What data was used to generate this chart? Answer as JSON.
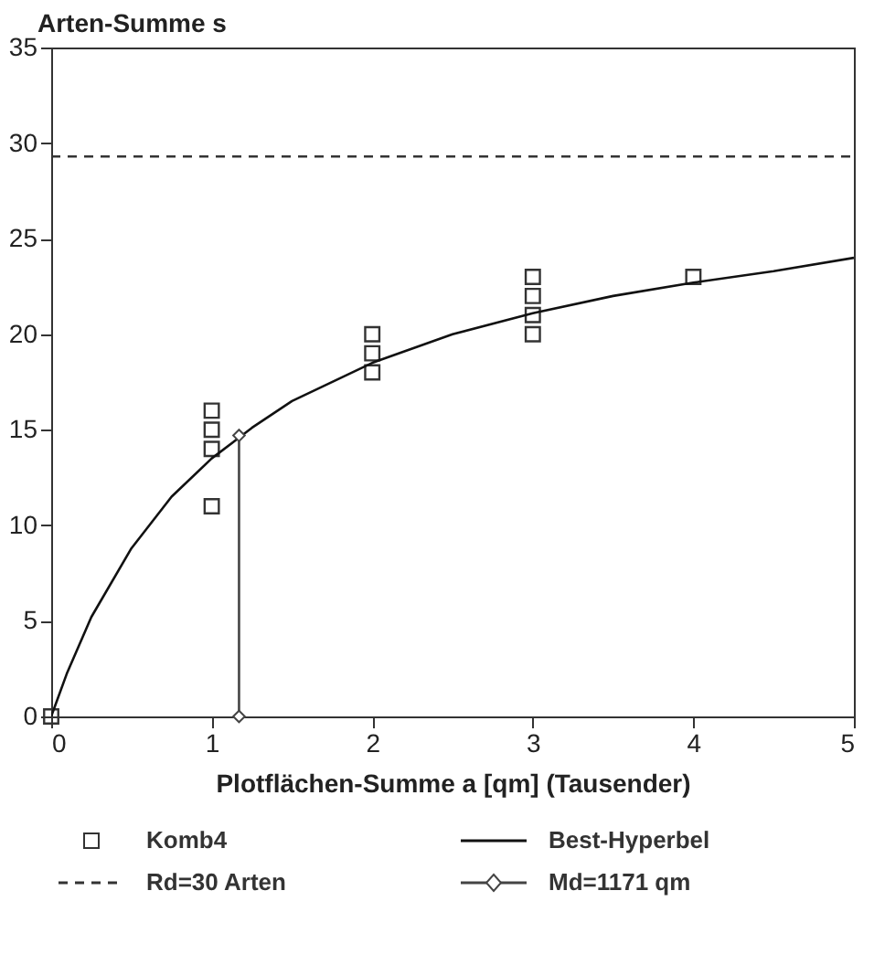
{
  "chart_data": {
    "type": "scatter",
    "xlabel": "Plotflächen-Summe a [qm] (Tausender)",
    "ylabel": "Arten-Summe s",
    "xlim": [
      0,
      5
    ],
    "xticks": [
      0,
      1,
      2,
      3,
      4,
      5
    ],
    "ylim": [
      0,
      35
    ],
    "yticks": [
      0,
      5,
      10,
      15,
      20,
      25,
      30,
      35
    ],
    "grid": false,
    "legend": "bottom",
    "series": [
      {
        "name": "Komb4",
        "marker": "square",
        "color": "#333333",
        "x": [
          0,
          1,
          1,
          1,
          1,
          2,
          2,
          2,
          3,
          3,
          3,
          3,
          4
        ],
        "values": [
          0,
          16,
          15,
          14,
          11,
          20,
          19,
          18,
          23,
          22,
          21,
          20,
          23
        ]
      },
      {
        "name": "Best-Hyperbel",
        "type": "line",
        "marker": "none",
        "line_style": "solid",
        "color": "#111111",
        "x": [
          0,
          0.1,
          0.25,
          0.5,
          0.75,
          1,
          1.25,
          1.5,
          2,
          2.5,
          3,
          3.5,
          4,
          4.5,
          5
        ],
        "values": [
          0,
          2.3,
          5.2,
          8.8,
          11.5,
          13.5,
          15.1,
          16.5,
          18.5,
          20,
          21.1,
          22,
          22.7,
          23.3,
          24
        ]
      },
      {
        "name": "Rd=30 Arten",
        "type": "line",
        "marker": "none",
        "line_style": "dashed",
        "color": "#333333",
        "x": [
          0,
          5
        ],
        "values": [
          29.3,
          29.3
        ]
      },
      {
        "name": "Md=1171 qm",
        "type": "line",
        "marker": "diamond",
        "line_style": "solid",
        "color": "#444444",
        "x": [
          1.17,
          1.17
        ],
        "values": [
          0,
          14.7
        ]
      }
    ]
  }
}
